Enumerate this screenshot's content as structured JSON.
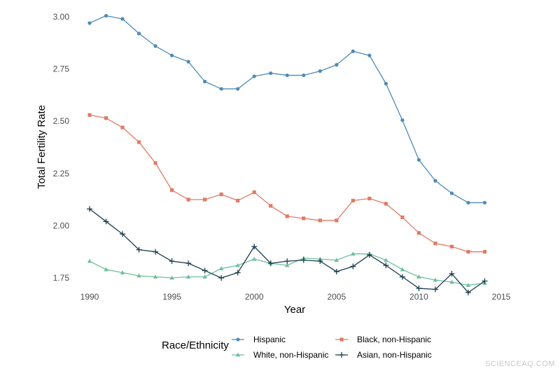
{
  "chart_data": {
    "type": "line",
    "title": "",
    "xlabel": "Year",
    "ylabel": "Total Fertility Rate",
    "xlim": [
      1990,
      2015
    ],
    "ylim": [
      1.73,
      3.05
    ],
    "x_ticks": [
      1990,
      1995,
      2000,
      2005,
      2010,
      2015
    ],
    "y_ticks": [
      1.75,
      2.0,
      2.25,
      2.5,
      2.75,
      3.0
    ],
    "y_tick_labels": [
      "1.75",
      "2.00",
      "2.25",
      "2.50",
      "2.75",
      "3.00"
    ],
    "grid": false,
    "legend_title": "Race/Ethnicity",
    "legend_placement": "bottom",
    "x": [
      1990,
      1991,
      1992,
      1993,
      1994,
      1995,
      1996,
      1997,
      1998,
      1999,
      2000,
      2001,
      2002,
      2003,
      2004,
      2005,
      2006,
      2007,
      2008,
      2009,
      2010,
      2011,
      2012,
      2013,
      2014
    ],
    "series": [
      {
        "name": "Hispanic",
        "color": "#4e8bb5",
        "marker": "circle",
        "values": [
          2.97,
          3.005,
          2.99,
          2.92,
          2.86,
          2.815,
          2.785,
          2.69,
          2.655,
          2.655,
          2.715,
          2.73,
          2.72,
          2.72,
          2.74,
          2.77,
          2.835,
          2.815,
          2.68,
          2.505,
          2.315,
          2.215,
          2.155,
          2.11,
          2.11
        ]
      },
      {
        "name": "Black, non-Hispanic",
        "color": "#e07b65",
        "marker": "square",
        "values": [
          2.53,
          2.515,
          2.47,
          2.4,
          2.3,
          2.17,
          2.125,
          2.125,
          2.15,
          2.12,
          2.16,
          2.095,
          2.045,
          2.035,
          2.025,
          2.025,
          2.12,
          2.13,
          2.105,
          2.04,
          1.965,
          1.915,
          1.9,
          1.875,
          1.875
        ]
      },
      {
        "name": "White, non-Hispanic",
        "color": "#6fbf9d",
        "marker": "triangle",
        "values": [
          1.83,
          1.79,
          1.775,
          1.76,
          1.755,
          1.75,
          1.755,
          1.755,
          1.795,
          1.81,
          1.84,
          1.82,
          1.81,
          1.845,
          1.84,
          1.835,
          1.865,
          1.865,
          1.835,
          1.79,
          1.755,
          1.74,
          1.73,
          1.715,
          1.725
        ]
      },
      {
        "name": "Asian, non-Hispanic",
        "color": "#1c3d4f",
        "marker": "plus",
        "values": [
          2.08,
          2.02,
          1.96,
          1.885,
          1.875,
          1.83,
          1.82,
          1.785,
          1.75,
          1.775,
          1.9,
          1.82,
          1.83,
          1.835,
          1.83,
          1.78,
          1.805,
          1.86,
          1.81,
          1.755,
          1.7,
          1.695,
          1.77,
          1.68,
          1.735
        ]
      }
    ]
  },
  "legend_order": [
    0,
    1,
    2,
    3
  ],
  "watermark": "SCIENCEAQ.COM"
}
